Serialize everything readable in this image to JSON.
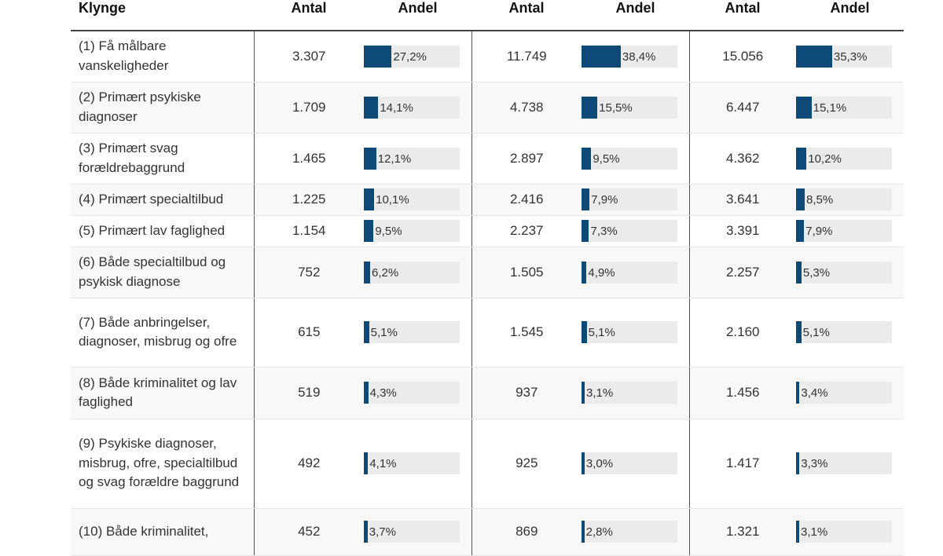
{
  "chart_data": {
    "type": "table",
    "headers": [
      "Klynge",
      "Antal",
      "Andel",
      "Antal",
      "Andel",
      "Antal",
      "Andel"
    ],
    "bar_color": "#0d4a78",
    "track_color": "#ebebeb",
    "rows": [
      {
        "label": "(1) Få målbare vanskeligheder",
        "groups": [
          {
            "antal": "3.307",
            "andel": "27,2%",
            "value": 27.2
          },
          {
            "antal": "11.749",
            "andel": "38,4%",
            "value": 38.4
          },
          {
            "antal": "15.056",
            "andel": "35,3%",
            "value": 35.3
          }
        ]
      },
      {
        "label": "(2) Primært psykiske diagnoser",
        "groups": [
          {
            "antal": "1.709",
            "andel": "14,1%",
            "value": 14.1
          },
          {
            "antal": "4.738",
            "andel": "15,5%",
            "value": 15.5
          },
          {
            "antal": "6.447",
            "andel": "15,1%",
            "value": 15.1
          }
        ]
      },
      {
        "label": "(3) Primært svag forældrebaggrund",
        "groups": [
          {
            "antal": "1.465",
            "andel": "12,1%",
            "value": 12.1
          },
          {
            "antal": "2.897",
            "andel": "9,5%",
            "value": 9.5
          },
          {
            "antal": "4.362",
            "andel": "10,2%",
            "value": 10.2
          }
        ]
      },
      {
        "label": "(4) Primært specialtilbud",
        "groups": [
          {
            "antal": "1.225",
            "andel": "10,1%",
            "value": 10.1
          },
          {
            "antal": "2.416",
            "andel": "7,9%",
            "value": 7.9
          },
          {
            "antal": "3.641",
            "andel": "8,5%",
            "value": 8.5
          }
        ]
      },
      {
        "label": "(5) Primært lav faglighed",
        "groups": [
          {
            "antal": "1.154",
            "andel": "9,5%",
            "value": 9.5
          },
          {
            "antal": "2.237",
            "andel": "7,3%",
            "value": 7.3
          },
          {
            "antal": "3.391",
            "andel": "7,9%",
            "value": 7.9
          }
        ]
      },
      {
        "label": "(6) Både specialtilbud og psykisk diagnose",
        "groups": [
          {
            "antal": "752",
            "andel": "6,2%",
            "value": 6.2
          },
          {
            "antal": "1.505",
            "andel": "4,9%",
            "value": 4.9
          },
          {
            "antal": "2.257",
            "andel": "5,3%",
            "value": 5.3
          }
        ]
      },
      {
        "label": "(7) Både anbringelser, diagnoser, misbrug og ofre",
        "groups": [
          {
            "antal": "615",
            "andel": "5,1%",
            "value": 5.1
          },
          {
            "antal": "1.545",
            "andel": "5,1%",
            "value": 5.1
          },
          {
            "antal": "2.160",
            "andel": "5,1%",
            "value": 5.1
          }
        ]
      },
      {
        "label": "(8) Både kriminalitet og lav faglighed",
        "groups": [
          {
            "antal": "519",
            "andel": "4,3%",
            "value": 4.3
          },
          {
            "antal": "937",
            "andel": "3,1%",
            "value": 3.1
          },
          {
            "antal": "1.456",
            "andel": "3,4%",
            "value": 3.4
          }
        ]
      },
      {
        "label": "(9) Psykiske diagnoser, misbrug, ofre, specialtilbud og svag forældre baggrund",
        "groups": [
          {
            "antal": "492",
            "andel": "4,1%",
            "value": 4.1
          },
          {
            "antal": "925",
            "andel": "3,0%",
            "value": 3.0
          },
          {
            "antal": "1.417",
            "andel": "3,3%",
            "value": 3.3
          }
        ]
      },
      {
        "label": "(10) Både kriminalitet,",
        "groups": [
          {
            "antal": "452",
            "andel": "3,7%",
            "value": 3.7
          },
          {
            "antal": "869",
            "andel": "2,8%",
            "value": 2.8
          },
          {
            "antal": "1.321",
            "andel": "3,1%",
            "value": 3.1
          }
        ]
      }
    ]
  }
}
